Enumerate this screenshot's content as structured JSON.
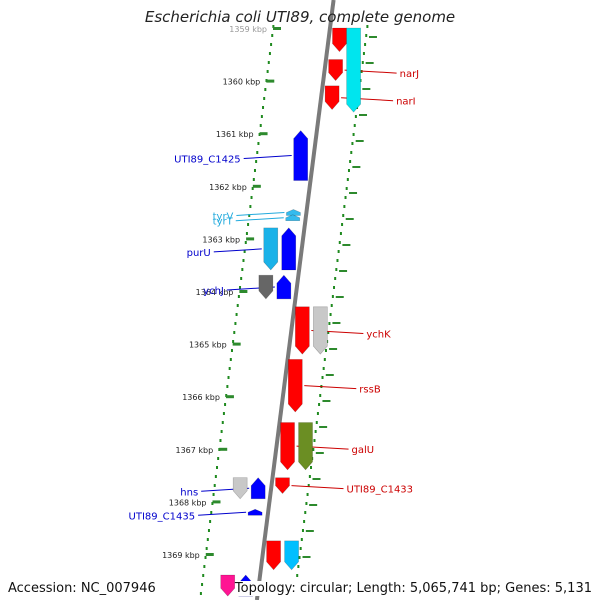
{
  "title": "Escherichia coli UTI89, complete genome",
  "footer": {
    "accession": "Accession: NC_007946",
    "summary": "Topology: circular; Length: 5,065,741 bp; Genes: 5,131"
  },
  "colors": {
    "backbone": "#7a7a7a",
    "tick": "#2d8a2d",
    "dot": "#1f8a1f",
    "label_red": "#cc0000",
    "label_blue": "#0000cc",
    "label_cyan": "#22aadd"
  },
  "scale": {
    "first_kbp": 1359,
    "ticks": [
      "1359 kbp",
      "1360 kbp",
      "1361 kbp",
      "1362 kbp",
      "1363 kbp",
      "1364 kbp",
      "1365 kbp",
      "1366 kbp",
      "1367 kbp",
      "1368 kbp",
      "1369 kbp"
    ]
  },
  "genes": [
    {
      "name": "narJ",
      "side": "right",
      "start": 1359.6,
      "end": 1360.0,
      "strand": -1,
      "color": "#ff0000",
      "lane": 1,
      "label_color": "#cc0000"
    },
    {
      "name": "narI",
      "side": "right",
      "start": 1360.1,
      "end": 1360.55,
      "strand": -1,
      "color": "#ff0000",
      "lane": 1,
      "label_color": "#cc0000"
    },
    {
      "name": "",
      "side": "right",
      "start": 1359.0,
      "end": 1359.45,
      "strand": -1,
      "color": "#ff0000",
      "lane": 1
    },
    {
      "name": "",
      "side": "right",
      "start": 1359.0,
      "end": 1360.6,
      "strand": -1,
      "color": "#00e5ee",
      "lane": 2
    },
    {
      "name": "UTI89_C1425",
      "side": "left",
      "start": 1360.95,
      "end": 1361.9,
      "strand": 1,
      "color": "#0000ff",
      "lane": 1,
      "label_color": "#0000cc"
    },
    {
      "name": "tyrV",
      "side": "left",
      "start": 1362.45,
      "end": 1362.5,
      "strand": 1,
      "color": "#33bbee",
      "lane": 1,
      "label_color": "#22aadd"
    },
    {
      "name": "tyrT",
      "side": "left",
      "start": 1362.55,
      "end": 1362.6,
      "strand": 1,
      "color": "#33bbee",
      "lane": 1,
      "label_color": "#22aadd"
    },
    {
      "name": "purU",
      "side": "left",
      "start": 1362.8,
      "end": 1363.6,
      "strand": -1,
      "color": "#1ab2e8",
      "lane": 2,
      "label_color": "#0000cc"
    },
    {
      "name": "",
      "side": "left",
      "start": 1362.8,
      "end": 1363.6,
      "strand": 1,
      "color": "#0000ff",
      "lane": 1
    },
    {
      "name": "ychJ",
      "side": "left",
      "start": 1363.7,
      "end": 1364.15,
      "strand": 1,
      "color": "#0000ff",
      "lane": 1,
      "label_color": "#0000cc"
    },
    {
      "name": "",
      "side": "left",
      "start": 1363.7,
      "end": 1364.15,
      "strand": -1,
      "color": "#666666",
      "lane": 2
    },
    {
      "name": "ychK",
      "side": "right",
      "start": 1364.3,
      "end": 1365.2,
      "strand": -1,
      "color": "#ff0000",
      "lane": 1,
      "label_color": "#cc0000"
    },
    {
      "name": "",
      "side": "right",
      "start": 1364.3,
      "end": 1365.2,
      "strand": -1,
      "color": "#c8c8c8",
      "lane": 2
    },
    {
      "name": "rssB",
      "side": "right",
      "start": 1365.3,
      "end": 1366.3,
      "strand": -1,
      "color": "#ff0000",
      "lane": 1,
      "label_color": "#cc0000"
    },
    {
      "name": "galU",
      "side": "right",
      "start": 1366.5,
      "end": 1367.4,
      "strand": -1,
      "color": "#ff0000",
      "lane": 1,
      "label_color": "#cc0000"
    },
    {
      "name": "",
      "side": "right",
      "start": 1366.5,
      "end": 1367.4,
      "strand": -1,
      "color": "#6b8e23",
      "lane": 2
    },
    {
      "name": "UTI89_C1433",
      "side": "right",
      "start": 1367.55,
      "end": 1367.85,
      "strand": -1,
      "color": "#ff0000",
      "lane": 1,
      "label_color": "#cc0000"
    },
    {
      "name": "hns",
      "side": "left",
      "start": 1367.55,
      "end": 1367.95,
      "strand": 1,
      "color": "#0000ff",
      "lane": 1,
      "label_color": "#0000cc"
    },
    {
      "name": "",
      "side": "left",
      "start": 1367.55,
      "end": 1367.95,
      "strand": -1,
      "color": "#c8c8c8",
      "lane": 2
    },
    {
      "name": "UTI89_C1435",
      "side": "left",
      "start": 1368.15,
      "end": 1368.25,
      "strand": 1,
      "color": "#0000ff",
      "lane": 1,
      "label_color": "#0000cc"
    },
    {
      "name": "",
      "side": "right",
      "start": 1368.75,
      "end": 1369.3,
      "strand": -1,
      "color": "#ff0000",
      "lane": 1
    },
    {
      "name": "",
      "side": "right",
      "start": 1368.75,
      "end": 1369.3,
      "strand": -1,
      "color": "#00bfff",
      "lane": 2
    },
    {
      "name": "",
      "side": "left",
      "start": 1369.4,
      "end": 1369.8,
      "strand": 1,
      "color": "#0000ff",
      "lane": 1
    },
    {
      "name": "",
      "side": "left",
      "start": 1369.4,
      "end": 1369.8,
      "strand": -1,
      "color": "#ff1493",
      "lane": 2
    }
  ]
}
